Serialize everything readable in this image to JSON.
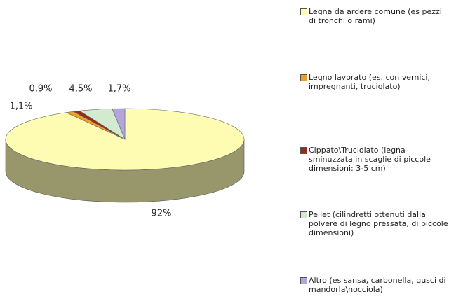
{
  "chart_data": {
    "type": "pie",
    "categories": [
      "Legna da ardere comune (es pezzi di tronchi o rami)",
      "Legno lavorato (es. con vernici, impregnanti, truciolato)",
      "Cippato\\Truciolato (legna sminuzzata in scaglie di piccole dimensioni: 3-5 cm)",
      "Pellet (cilindretti ottenuti dalla polvere di legno pressata, di piccole dimensioni)",
      "Altro (es sansa, carbonella, gusci di mandorla\\nocciola)"
    ],
    "values": [
      92,
      1.1,
      0.9,
      4.5,
      1.7
    ],
    "value_labels": [
      "92%",
      "1,1%",
      "0,9%",
      "4,5%",
      "1,7%"
    ],
    "colors": [
      "#fdfcb2",
      "#f0a028",
      "#9c2a1a",
      "#d2ead0",
      "#b4a4dc"
    ],
    "legend": "right"
  }
}
